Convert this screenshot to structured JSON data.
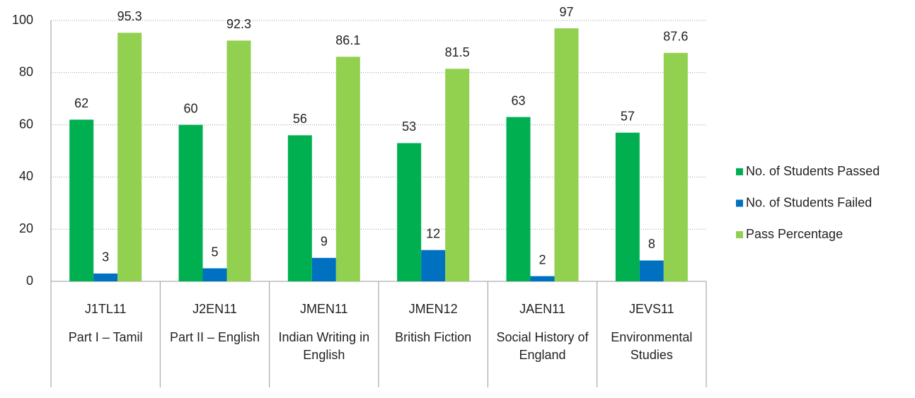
{
  "chart_data": {
    "type": "bar",
    "categories": [
      "J1TL11",
      "J2EN11",
      "JMEN11",
      "JMEN12",
      "JAEN11",
      "JEVS11"
    ],
    "category_names": [
      "Part I – Tamil",
      "Part II – English",
      "Indian Writing in English",
      "British Fiction",
      "Social History of England",
      "Environmental Studies"
    ],
    "series": [
      {
        "name": "No. of Students Passed",
        "color": "#00b050",
        "values": [
          62,
          60,
          56,
          53,
          63,
          57
        ]
      },
      {
        "name": "No. of Students Failed",
        "color": "#0070c0",
        "values": [
          3,
          5,
          9,
          12,
          2,
          8
        ]
      },
      {
        "name": "Pass Percentage",
        "color": "#92d050",
        "values": [
          95.3,
          92.3,
          86.1,
          81.5,
          97,
          87.6
        ]
      }
    ],
    "ylim": [
      0,
      100
    ],
    "yticks": [
      0,
      20,
      40,
      60,
      80,
      100
    ],
    "grid": true,
    "legend": "right"
  }
}
